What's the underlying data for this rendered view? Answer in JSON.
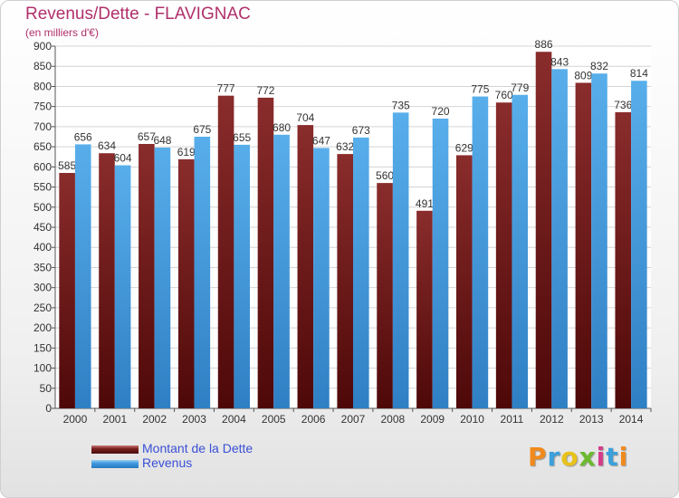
{
  "header": {
    "title": "Revenus/Dette - FLAVIGNAC",
    "subtitle": "(en milliers d'€)"
  },
  "chart_data": {
    "type": "bar",
    "categories": [
      "2000",
      "2001",
      "2002",
      "2003",
      "2004",
      "2005",
      "2006",
      "2007",
      "2008",
      "2009",
      "2010",
      "2011",
      "2012",
      "2013",
      "2014"
    ],
    "series": [
      {
        "name": "Montant de la Dette",
        "color": "#7a1f1f",
        "values": [
          585,
          634,
          657,
          619,
          777,
          772,
          704,
          632,
          560,
          491,
          629,
          760,
          886,
          809,
          736
        ]
      },
      {
        "name": "Revenus",
        "color": "#3f9ae0",
        "values": [
          656,
          604,
          648,
          675,
          655,
          680,
          647,
          673,
          735,
          720,
          775,
          779,
          843,
          832,
          814
        ]
      }
    ],
    "ylim": [
      0,
      900
    ],
    "yticks": [
      0,
      50,
      100,
      150,
      200,
      250,
      300,
      350,
      400,
      450,
      500,
      550,
      600,
      650,
      700,
      750,
      800,
      850,
      900
    ],
    "grid": true,
    "legend_position": "bottom-left"
  },
  "logo": {
    "text": "Proxiti"
  }
}
